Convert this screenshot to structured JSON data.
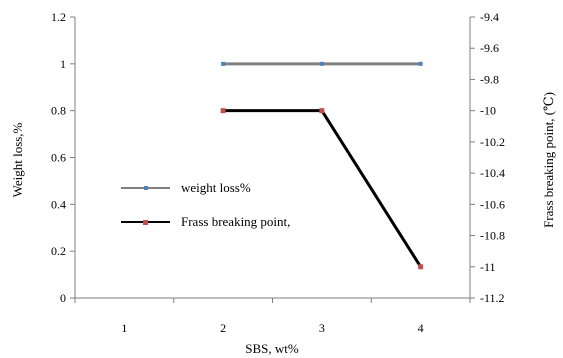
{
  "chart_data": {
    "type": "line",
    "categories": [
      "1",
      "2",
      "3",
      "4"
    ],
    "xlabel": "SBS, wt%",
    "ylabel": "Weight loss,%",
    "y2label": "Frass breaking point, (℃)",
    "ylim": [
      0,
      1.2
    ],
    "y2lim": [
      -11.2,
      -9.4
    ],
    "y_ticks": [
      "0",
      "0.2",
      "0.4",
      "0.6",
      "0.8",
      "1",
      "1.2"
    ],
    "y2_ticks": [
      "-9.4",
      "-9.6",
      "-9.8",
      "-10",
      "-10.2",
      "-10.4",
      "-10.6",
      "-10.8",
      "-11",
      "-11.2"
    ],
    "grid": false,
    "legend_position": "left",
    "series": [
      {
        "name": "weight loss%",
        "axis": "left",
        "x": [
          "2",
          "3",
          "4"
        ],
        "values": [
          1,
          1,
          1
        ],
        "color": "#808080",
        "marker_color": "#4f81bd"
      },
      {
        "name": "Frass breaking point,",
        "axis": "right",
        "x": [
          "2",
          "3",
          "4"
        ],
        "values": [
          -10,
          -10,
          -11
        ],
        "color": "#000000",
        "marker_color": "#c0504d"
      }
    ]
  }
}
